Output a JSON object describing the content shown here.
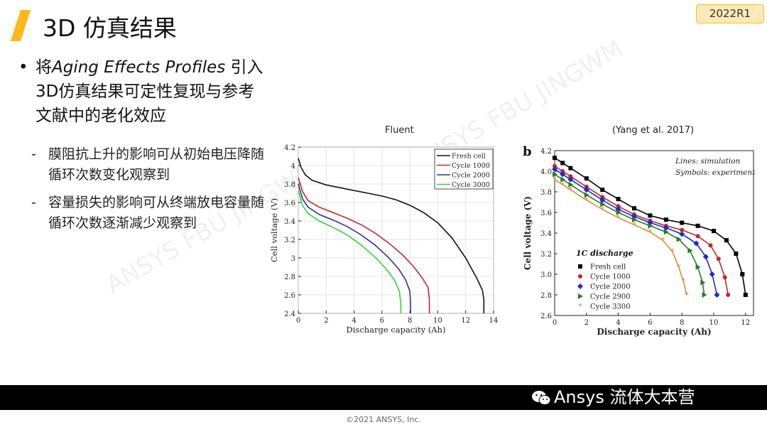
{
  "header": {
    "title": "3D 仿真结果",
    "badge": "2022R1"
  },
  "bullet": {
    "prefix": "将",
    "italic": "Aging Effects Profiles",
    "rest": " 引入3D仿真结果可定性复现与参考文献中的老化效应"
  },
  "sub_bullets": [
    "膜阻抗上升的影响可从初始电压降随循环次数变化观察到",
    "容量损失的影响可从终端放电容量随循环次数逐渐减少观察到"
  ],
  "watermark": "ANSYS FBU JINGWM",
  "footer": {
    "brand": "Ansys 流体大本营",
    "copyright": "©2021 ANSYS, Inc."
  },
  "colors": {
    "accent": "#ffb71b",
    "badge_bg": "#ffe9b8"
  },
  "chart_data": [
    {
      "type": "line",
      "title": "Fluent",
      "xlabel": "Discharge capacity (Ah)",
      "ylabel": "Cell voltage (V)",
      "xlim": [
        0,
        14
      ],
      "ylim": [
        2.4,
        4.2
      ],
      "xticks": [
        0,
        2,
        4,
        6,
        8,
        10,
        12,
        14
      ],
      "yticks": [
        2.4,
        2.6,
        2.8,
        3,
        3.2,
        3.4,
        3.6,
        3.8,
        4,
        4.2
      ],
      "legend_position": "top-right",
      "series": [
        {
          "name": "Fresh cell",
          "color": "#111111",
          "x": [
            0,
            0.2,
            0.5,
            1,
            2,
            3,
            4,
            5,
            6,
            7,
            8,
            9,
            10,
            11,
            12,
            12.8,
            13.2,
            13.3,
            13.3
          ],
          "y": [
            4.08,
            3.98,
            3.9,
            3.84,
            3.79,
            3.76,
            3.73,
            3.7,
            3.67,
            3.63,
            3.57,
            3.49,
            3.38,
            3.22,
            3.0,
            2.78,
            2.65,
            2.55,
            2.4
          ]
        },
        {
          "name": "Cycle 1000",
          "color": "#c0282d",
          "x": [
            0,
            0.3,
            0.7,
            1.5,
            2.5,
            3.5,
            4.5,
            5.5,
            6.5,
            7.5,
            8.3,
            8.9,
            9.3,
            9.4,
            9.4
          ],
          "y": [
            3.87,
            3.72,
            3.62,
            3.55,
            3.49,
            3.43,
            3.36,
            3.27,
            3.16,
            3.03,
            2.9,
            2.78,
            2.68,
            2.55,
            2.4
          ]
        },
        {
          "name": "Cycle 2000",
          "color": "#2b2fa8",
          "x": [
            0,
            0.3,
            0.7,
            1.5,
            2.5,
            3.5,
            4.5,
            5.5,
            6.5,
            7.2,
            7.7,
            8.0,
            8.05,
            8.05
          ],
          "y": [
            3.8,
            3.64,
            3.55,
            3.47,
            3.41,
            3.34,
            3.25,
            3.14,
            3.0,
            2.88,
            2.76,
            2.64,
            2.5,
            2.4
          ]
        },
        {
          "name": "Cycle 3000",
          "color": "#33d633",
          "x": [
            0,
            0.3,
            0.7,
            1.5,
            2.5,
            3.5,
            4.5,
            5.5,
            6.3,
            6.9,
            7.25,
            7.35,
            7.35
          ],
          "y": [
            3.73,
            3.57,
            3.48,
            3.4,
            3.33,
            3.25,
            3.14,
            3.01,
            2.88,
            2.76,
            2.64,
            2.5,
            2.4
          ]
        }
      ]
    },
    {
      "type": "line",
      "title": "(Yang et al. 2017)",
      "panel_label": "b",
      "xlabel": "Discharge capacity (Ah)",
      "ylabel": "Cell voltage (V)",
      "xlim": [
        0,
        12.5
      ],
      "ylim": [
        2.6,
        4.2
      ],
      "xticks": [
        0,
        2,
        4,
        6,
        8,
        10,
        12
      ],
      "yticks": [
        2.6,
        2.8,
        3.0,
        3.2,
        3.4,
        3.6,
        3.8,
        4.0,
        4.2
      ],
      "annotations": [
        "Lines: simulation",
        "Symbols: experiment"
      ],
      "legend_title": "1C discharge",
      "series": [
        {
          "name": "Fresh cell",
          "color": "#000000",
          "marker": "square",
          "x": [
            0,
            0.5,
            1,
            2,
            3,
            4,
            5,
            6,
            7,
            8,
            9,
            10,
            10.8,
            11.4,
            11.8,
            12.0
          ],
          "y": [
            4.13,
            4.08,
            4.03,
            3.93,
            3.82,
            3.73,
            3.64,
            3.57,
            3.53,
            3.5,
            3.47,
            3.42,
            3.33,
            3.2,
            3.0,
            2.8
          ]
        },
        {
          "name": "Cycle 1000",
          "color": "#c0282d",
          "marker": "circle",
          "x": [
            0,
            0.5,
            1,
            2,
            3,
            4,
            5,
            6,
            7,
            8,
            9,
            9.8,
            10.3,
            10.7,
            10.9
          ],
          "y": [
            4.05,
            4.0,
            3.95,
            3.85,
            3.75,
            3.66,
            3.58,
            3.52,
            3.47,
            3.43,
            3.37,
            3.28,
            3.15,
            2.97,
            2.8
          ]
        },
        {
          "name": "Cycle 2000",
          "color": "#1e2bd1",
          "marker": "diamond",
          "x": [
            0,
            0.5,
            1,
            2,
            3,
            4,
            5,
            6,
            7,
            8,
            8.9,
            9.5,
            9.9,
            10.2
          ],
          "y": [
            4.02,
            3.97,
            3.92,
            3.82,
            3.72,
            3.63,
            3.56,
            3.5,
            3.45,
            3.39,
            3.3,
            3.17,
            3.0,
            2.8
          ]
        },
        {
          "name": "Cycle 2900",
          "color": "#2a7a2a",
          "marker": "triangle-right",
          "x": [
            0,
            0.5,
            1,
            2,
            3,
            4,
            5,
            6,
            7,
            7.8,
            8.5,
            9.0,
            9.3,
            9.4
          ],
          "y": [
            3.97,
            3.92,
            3.87,
            3.77,
            3.68,
            3.6,
            3.53,
            3.47,
            3.41,
            3.34,
            3.23,
            3.07,
            2.92,
            2.8
          ]
        },
        {
          "name": "Cycle 3300",
          "color": "#e08a3a",
          "marker": "star",
          "x": [
            0,
            0.5,
            1,
            2,
            3,
            4,
            5,
            6,
            6.8,
            7.4,
            7.8,
            8.1,
            8.3
          ],
          "y": [
            3.92,
            3.87,
            3.82,
            3.72,
            3.63,
            3.55,
            3.48,
            3.41,
            3.33,
            3.22,
            3.07,
            2.93,
            2.8
          ]
        }
      ]
    }
  ]
}
